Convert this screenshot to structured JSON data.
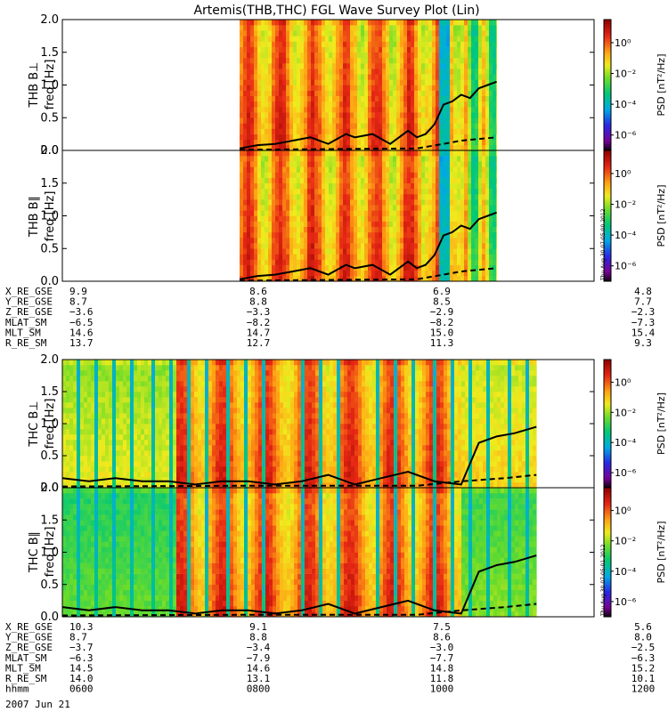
{
  "title": "Artemis(THB,THC) FGL Wave Survey Plot (Lin)",
  "stamp": "Thu Aug 30 07:05:00 2012",
  "stamp2": "Thu Aug 30 07:05:01 2012",
  "colorbar": {
    "label": "PSD [nT²/Hz]",
    "ticks": [
      "10⁰",
      "10⁻²",
      "10⁻⁴",
      "10⁻⁶"
    ],
    "tick_exponents": [
      0,
      -2,
      -4,
      -6
    ],
    "range_log": [
      -7,
      1.5
    ]
  },
  "panel_common": {
    "ylabel": "freq [Hz]",
    "ylim": [
      0,
      2.0
    ],
    "yticks": [
      "0.0",
      "0.5",
      "1.0",
      "1.5",
      "2.0"
    ],
    "ytick_values": [
      0.0,
      0.5,
      1.0,
      1.5,
      2.0
    ]
  },
  "chart_data": [
    {
      "type": "heatmap",
      "probe": "THB",
      "name": "THB B⊥",
      "time_range_hhmm": [
        "0600",
        "1200"
      ],
      "data_start_hour": 8.0,
      "data_end_hour": 10.9,
      "lines": {
        "solid_hours": [
          8.0,
          8.2,
          8.4,
          8.6,
          8.8,
          9.0,
          9.2,
          9.3,
          9.5,
          9.7,
          9.9,
          10.0,
          10.1,
          10.2,
          10.3,
          10.4,
          10.5,
          10.6,
          10.7,
          10.8,
          10.9
        ],
        "solid_hz": [
          0.03,
          0.08,
          0.1,
          0.15,
          0.2,
          0.1,
          0.25,
          0.2,
          0.25,
          0.1,
          0.3,
          0.2,
          0.25,
          0.4,
          0.7,
          0.75,
          0.85,
          0.8,
          0.95,
          1.0,
          1.05
        ],
        "dashed_hours": [
          8.0,
          9.0,
          10.0,
          10.3,
          10.5,
          10.9
        ],
        "dashed_hz": [
          0.01,
          0.02,
          0.03,
          0.1,
          0.15,
          0.2
        ]
      }
    },
    {
      "type": "heatmap",
      "probe": "THB",
      "name": "THB B∥",
      "time_range_hhmm": [
        "0600",
        "1200"
      ],
      "data_start_hour": 8.0,
      "data_end_hour": 10.9,
      "lines": {
        "solid_hours": [
          8.0,
          8.2,
          8.4,
          8.6,
          8.8,
          9.0,
          9.2,
          9.3,
          9.5,
          9.7,
          9.9,
          10.0,
          10.1,
          10.2,
          10.3,
          10.4,
          10.5,
          10.6,
          10.7,
          10.8,
          10.9
        ],
        "solid_hz": [
          0.03,
          0.08,
          0.1,
          0.15,
          0.2,
          0.1,
          0.25,
          0.2,
          0.25,
          0.1,
          0.3,
          0.2,
          0.25,
          0.4,
          0.7,
          0.75,
          0.85,
          0.8,
          0.95,
          1.0,
          1.05
        ],
        "dashed_hours": [
          8.0,
          9.0,
          10.0,
          10.3,
          10.5,
          10.9
        ],
        "dashed_hz": [
          0.01,
          0.02,
          0.03,
          0.1,
          0.15,
          0.2
        ]
      }
    },
    {
      "type": "heatmap",
      "probe": "THC",
      "name": "THC B⊥",
      "time_range_hhmm": [
        "0600",
        "1200"
      ],
      "data_start_hour": 6.0,
      "data_end_hour": 11.35,
      "lines": {
        "solid_hours": [
          6.0,
          6.3,
          6.6,
          6.9,
          7.2,
          7.5,
          7.8,
          8.1,
          8.4,
          8.7,
          9.0,
          9.3,
          9.6,
          9.9,
          10.2,
          10.5,
          10.7,
          10.9,
          11.1,
          11.35
        ],
        "solid_hz": [
          0.15,
          0.1,
          0.15,
          0.1,
          0.1,
          0.05,
          0.1,
          0.1,
          0.05,
          0.1,
          0.2,
          0.05,
          0.15,
          0.25,
          0.1,
          0.05,
          0.7,
          0.8,
          0.85,
          0.95
        ],
        "dashed_hours": [
          6.0,
          8.0,
          10.0,
          10.5,
          11.0,
          11.35
        ],
        "dashed_hz": [
          0.02,
          0.03,
          0.03,
          0.1,
          0.15,
          0.2
        ]
      }
    },
    {
      "type": "heatmap",
      "probe": "THC",
      "name": "THC B∥",
      "time_range_hhmm": [
        "0600",
        "1200"
      ],
      "data_start_hour": 6.0,
      "data_end_hour": 11.35,
      "lines": {
        "solid_hours": [
          6.0,
          6.3,
          6.6,
          6.9,
          7.2,
          7.5,
          7.8,
          8.1,
          8.4,
          8.7,
          9.0,
          9.3,
          9.6,
          9.9,
          10.2,
          10.5,
          10.7,
          10.9,
          11.1,
          11.35
        ],
        "solid_hz": [
          0.15,
          0.1,
          0.15,
          0.1,
          0.1,
          0.05,
          0.1,
          0.1,
          0.05,
          0.1,
          0.2,
          0.05,
          0.15,
          0.25,
          0.1,
          0.05,
          0.7,
          0.8,
          0.85,
          0.95
        ],
        "dashed_hours": [
          6.0,
          8.0,
          10.0,
          10.5,
          11.0,
          11.35
        ],
        "dashed_hz": [
          0.02,
          0.03,
          0.03,
          0.1,
          0.15,
          0.2
        ]
      }
    }
  ],
  "ephem_thb": {
    "rows": [
      {
        "label": "X_RE_GSE",
        "values": [
          "9.9",
          "8.6",
          "6.9",
          "4.8"
        ]
      },
      {
        "label": "Y_RE_GSE",
        "values": [
          "8.7",
          "8.8",
          "8.5",
          "7.7"
        ]
      },
      {
        "label": "Z_RE_GSE",
        "values": [
          "−3.6",
          "−3.3",
          "−2.9",
          "−2.3"
        ]
      },
      {
        "label": "MLAT_SM",
        "values": [
          "−6.5",
          "−8.2",
          "−8.2",
          "−7.3"
        ]
      },
      {
        "label": "MLT_SM",
        "values": [
          "14.6",
          "14.7",
          "15.0",
          "15.4"
        ]
      },
      {
        "label": "R_RE_SM",
        "values": [
          "13.7",
          "12.7",
          "11.3",
          "9.3"
        ]
      }
    ]
  },
  "ephem_thc": {
    "rows": [
      {
        "label": "X_RE_GSE",
        "values": [
          "10.3",
          "9.1",
          "7.5",
          "5.6"
        ]
      },
      {
        "label": "Y_RE_GSE",
        "values": [
          "8.7",
          "8.8",
          "8.6",
          "8.0"
        ]
      },
      {
        "label": "Z_RE_GSE",
        "values": [
          "−3.7",
          "−3.4",
          "−3.0",
          "−2.5"
        ]
      },
      {
        "label": "MLAT_SM",
        "values": [
          "−6.3",
          "−7.9",
          "−7.7",
          "−6.3"
        ]
      },
      {
        "label": "MLT_SM",
        "values": [
          "14.5",
          "14.6",
          "14.8",
          "15.2"
        ]
      },
      {
        "label": "R_RE_SM",
        "values": [
          "14.0",
          "13.1",
          "11.8",
          "10.1"
        ]
      },
      {
        "label": "hhmm",
        "values": [
          "0600",
          "0800",
          "1000",
          "1200"
        ]
      }
    ]
  },
  "date": "2007 Jun 21"
}
